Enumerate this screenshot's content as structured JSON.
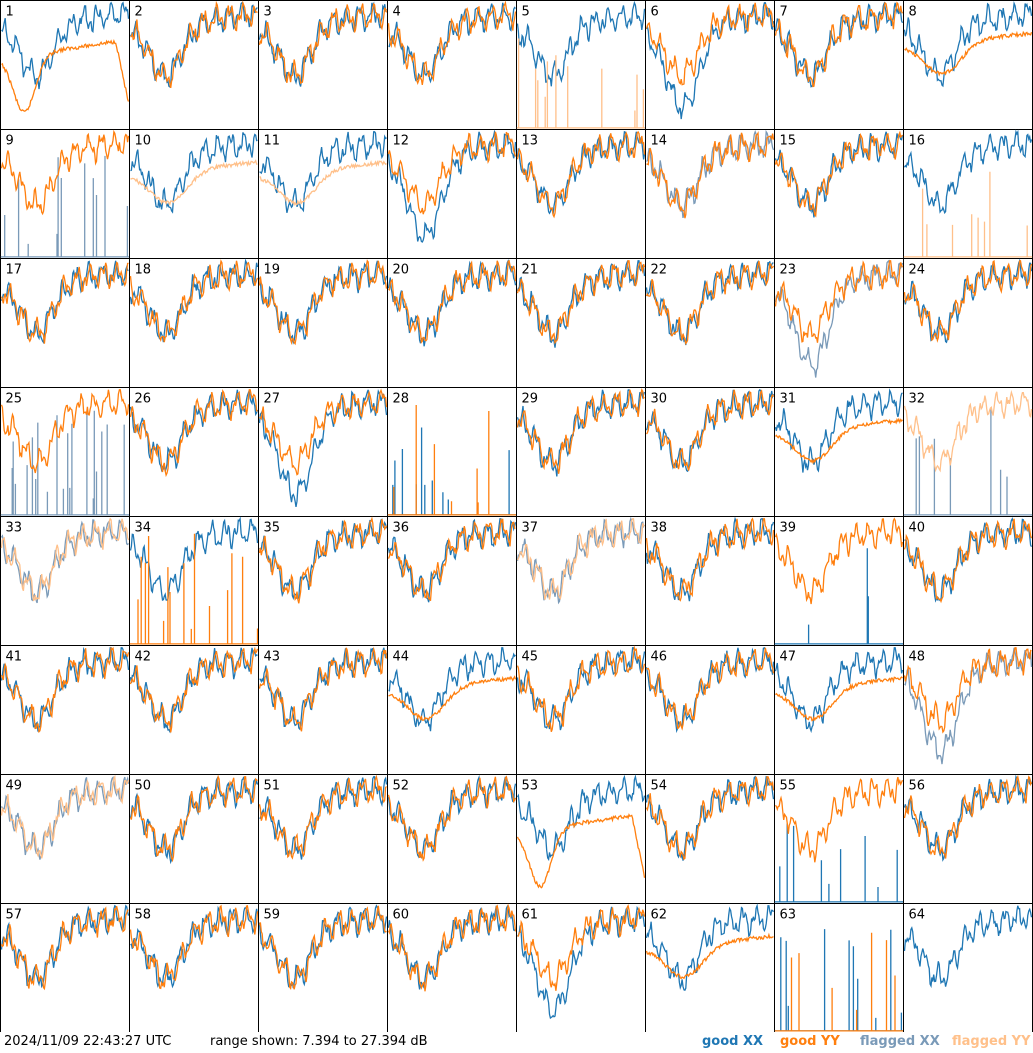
{
  "colors": {
    "good_xx": "#1f77b4",
    "good_yy": "#ff7f0e",
    "flagged_xx": "#7a9ab8",
    "flagged_yy": "#ffc08a"
  },
  "footer": {
    "timestamp": "2024/11/09 22:43:27 UTC",
    "range_text": "range shown: 7.394 to 27.394 dB",
    "legend": {
      "good_xx": "good XX",
      "good_yy": "good YY",
      "flagged_xx": "flagged XX",
      "flagged_yy": "flagged YY"
    }
  },
  "chart_data": {
    "type": "line",
    "ylim": [
      7.394,
      27.394
    ],
    "yunit": "dB",
    "grid_cols": 8,
    "grid_rows": 8,
    "panel_labels": [
      "1",
      "2",
      "3",
      "4",
      "5",
      "6",
      "7",
      "8",
      "9",
      "10",
      "11",
      "12",
      "13",
      "14",
      "15",
      "16",
      "17",
      "18",
      "19",
      "20",
      "21",
      "22",
      "23",
      "24",
      "25",
      "26",
      "27",
      "28",
      "29",
      "30",
      "31",
      "32",
      "33",
      "34",
      "35",
      "36",
      "37",
      "38",
      "39",
      "40",
      "41",
      "42",
      "43",
      "44",
      "45",
      "46",
      "47",
      "48",
      "49",
      "50",
      "51",
      "52",
      "53",
      "54",
      "55",
      "56",
      "57",
      "58",
      "59",
      "60",
      "61",
      "62",
      "63",
      "64"
    ],
    "series": [
      {
        "name": "good XX",
        "color_key": "good_xx"
      },
      {
        "name": "good YY",
        "color_key": "good_yy"
      },
      {
        "name": "flagged XX",
        "color_key": "flagged_xx"
      },
      {
        "name": "flagged YY",
        "color_key": "flagged_yy"
      }
    ],
    "panels": [
      {
        "n": "1",
        "xx": "good",
        "yy": "good",
        "xx_type": "normal",
        "yy_type": "dip"
      },
      {
        "n": "2",
        "xx": "good",
        "yy": "good",
        "xx_type": "normal",
        "yy_type": "normal"
      },
      {
        "n": "3",
        "xx": "good",
        "yy": "good",
        "xx_type": "normal",
        "yy_type": "normal"
      },
      {
        "n": "4",
        "xx": "good",
        "yy": "good",
        "xx_type": "normal",
        "yy_type": "normal"
      },
      {
        "n": "5",
        "xx": "good",
        "yy": "flagged",
        "xx_type": "normal",
        "yy_type": "spikes"
      },
      {
        "n": "6",
        "xx": "good",
        "yy": "good",
        "xx_type": "deep",
        "yy_type": "normal"
      },
      {
        "n": "7",
        "xx": "good",
        "yy": "good",
        "xx_type": "normal",
        "yy_type": "normal"
      },
      {
        "n": "8",
        "xx": "good",
        "yy": "good",
        "xx_type": "normal",
        "yy_type": "smooth"
      },
      {
        "n": "9",
        "xx": "flagged",
        "yy": "good",
        "xx_type": "spikes",
        "yy_type": "normal"
      },
      {
        "n": "10",
        "xx": "good",
        "yy": "flagged",
        "xx_type": "normal",
        "yy_type": "smooth"
      },
      {
        "n": "11",
        "xx": "good",
        "yy": "flagged",
        "xx_type": "normal",
        "yy_type": "smooth"
      },
      {
        "n": "12",
        "xx": "good",
        "yy": "good",
        "xx_type": "deep",
        "yy_type": "normal"
      },
      {
        "n": "13",
        "xx": "good",
        "yy": "good",
        "xx_type": "normal",
        "yy_type": "normal"
      },
      {
        "n": "14",
        "xx": "flagged",
        "yy": "good",
        "xx_type": "normal",
        "yy_type": "normal"
      },
      {
        "n": "15",
        "xx": "good",
        "yy": "good",
        "xx_type": "normal",
        "yy_type": "normal"
      },
      {
        "n": "16",
        "xx": "good",
        "yy": "flagged",
        "xx_type": "normal",
        "yy_type": "spikes"
      },
      {
        "n": "17",
        "xx": "good",
        "yy": "good",
        "xx_type": "normal",
        "yy_type": "normal"
      },
      {
        "n": "18",
        "xx": "good",
        "yy": "good",
        "xx_type": "normal",
        "yy_type": "normal"
      },
      {
        "n": "19",
        "xx": "good",
        "yy": "good",
        "xx_type": "normal",
        "yy_type": "normal"
      },
      {
        "n": "20",
        "xx": "good",
        "yy": "good",
        "xx_type": "normal",
        "yy_type": "normal"
      },
      {
        "n": "21",
        "xx": "good",
        "yy": "good",
        "xx_type": "normal",
        "yy_type": "normal"
      },
      {
        "n": "22",
        "xx": "good",
        "yy": "good",
        "xx_type": "normal",
        "yy_type": "normal"
      },
      {
        "n": "23",
        "xx": "flagged",
        "yy": "good",
        "xx_type": "deep",
        "yy_type": "normal"
      },
      {
        "n": "24",
        "xx": "good",
        "yy": "good",
        "xx_type": "normal",
        "yy_type": "normal"
      },
      {
        "n": "25",
        "xx": "flagged",
        "yy": "good",
        "xx_type": "spikes",
        "yy_type": "normal"
      },
      {
        "n": "26",
        "xx": "good",
        "yy": "good",
        "xx_type": "normal",
        "yy_type": "normal"
      },
      {
        "n": "27",
        "xx": "good",
        "yy": "good",
        "xx_type": "deep",
        "yy_type": "normal"
      },
      {
        "n": "28",
        "xx": "good",
        "yy": "good",
        "xx_type": "spikes",
        "yy_type": "spikes"
      },
      {
        "n": "29",
        "xx": "good",
        "yy": "good",
        "xx_type": "normal",
        "yy_type": "normal"
      },
      {
        "n": "30",
        "xx": "good",
        "yy": "good",
        "xx_type": "normal",
        "yy_type": "normal"
      },
      {
        "n": "31",
        "xx": "good",
        "yy": "good",
        "xx_type": "normal",
        "yy_type": "smooth"
      },
      {
        "n": "32",
        "xx": "flagged",
        "yy": "flagged",
        "xx_type": "spikes",
        "yy_type": "normal"
      },
      {
        "n": "33",
        "xx": "flagged",
        "yy": "flagged",
        "xx_type": "normal",
        "yy_type": "normal"
      },
      {
        "n": "34",
        "xx": "good",
        "yy": "good",
        "xx_type": "normal",
        "yy_type": "spikes"
      },
      {
        "n": "35",
        "xx": "good",
        "yy": "good",
        "xx_type": "normal",
        "yy_type": "normal"
      },
      {
        "n": "36",
        "xx": "good",
        "yy": "good",
        "xx_type": "normal",
        "yy_type": "normal"
      },
      {
        "n": "37",
        "xx": "flagged",
        "yy": "flagged",
        "xx_type": "normal",
        "yy_type": "normal"
      },
      {
        "n": "38",
        "xx": "good",
        "yy": "good",
        "xx_type": "normal",
        "yy_type": "normal"
      },
      {
        "n": "39",
        "xx": "good",
        "yy": "good",
        "xx_type": "spikes",
        "yy_type": "normal"
      },
      {
        "n": "40",
        "xx": "good",
        "yy": "good",
        "xx_type": "normal",
        "yy_type": "normal"
      },
      {
        "n": "41",
        "xx": "good",
        "yy": "good",
        "xx_type": "normal",
        "yy_type": "normal"
      },
      {
        "n": "42",
        "xx": "good",
        "yy": "good",
        "xx_type": "normal",
        "yy_type": "normal"
      },
      {
        "n": "43",
        "xx": "good",
        "yy": "good",
        "xx_type": "normal",
        "yy_type": "normal"
      },
      {
        "n": "44",
        "xx": "good",
        "yy": "good",
        "xx_type": "normal",
        "yy_type": "smooth"
      },
      {
        "n": "45",
        "xx": "good",
        "yy": "good",
        "xx_type": "normal",
        "yy_type": "normal"
      },
      {
        "n": "46",
        "xx": "good",
        "yy": "good",
        "xx_type": "normal",
        "yy_type": "normal"
      },
      {
        "n": "47",
        "xx": "good",
        "yy": "good",
        "xx_type": "normal",
        "yy_type": "smooth"
      },
      {
        "n": "48",
        "xx": "flagged",
        "yy": "good",
        "xx_type": "deep",
        "yy_type": "normal"
      },
      {
        "n": "49",
        "xx": "flagged",
        "yy": "flagged",
        "xx_type": "normal",
        "yy_type": "normal"
      },
      {
        "n": "50",
        "xx": "good",
        "yy": "good",
        "xx_type": "normal",
        "yy_type": "normal"
      },
      {
        "n": "51",
        "xx": "good",
        "yy": "good",
        "xx_type": "normal",
        "yy_type": "normal"
      },
      {
        "n": "52",
        "xx": "good",
        "yy": "good",
        "xx_type": "normal",
        "yy_type": "normal"
      },
      {
        "n": "53",
        "xx": "good",
        "yy": "good",
        "xx_type": "normal",
        "yy_type": "dip"
      },
      {
        "n": "54",
        "xx": "good",
        "yy": "good",
        "xx_type": "normal",
        "yy_type": "normal"
      },
      {
        "n": "55",
        "xx": "good",
        "yy": "good",
        "xx_type": "spikes",
        "yy_type": "normal"
      },
      {
        "n": "56",
        "xx": "good",
        "yy": "good",
        "xx_type": "normal",
        "yy_type": "normal"
      },
      {
        "n": "57",
        "xx": "good",
        "yy": "good",
        "xx_type": "normal",
        "yy_type": "normal"
      },
      {
        "n": "58",
        "xx": "good",
        "yy": "good",
        "xx_type": "normal",
        "yy_type": "normal"
      },
      {
        "n": "59",
        "xx": "good",
        "yy": "good",
        "xx_type": "normal",
        "yy_type": "normal"
      },
      {
        "n": "60",
        "xx": "good",
        "yy": "good",
        "xx_type": "normal",
        "yy_type": "normal"
      },
      {
        "n": "61",
        "xx": "good",
        "yy": "good",
        "xx_type": "deep",
        "yy_type": "normal"
      },
      {
        "n": "62",
        "xx": "good",
        "yy": "good",
        "xx_type": "normal",
        "yy_type": "smooth"
      },
      {
        "n": "63",
        "xx": "good",
        "yy": "good",
        "xx_type": "spikes",
        "yy_type": "spikes"
      },
      {
        "n": "64",
        "xx": "good",
        "yy": "none",
        "xx_type": "normal",
        "yy_type": "none"
      }
    ]
  }
}
